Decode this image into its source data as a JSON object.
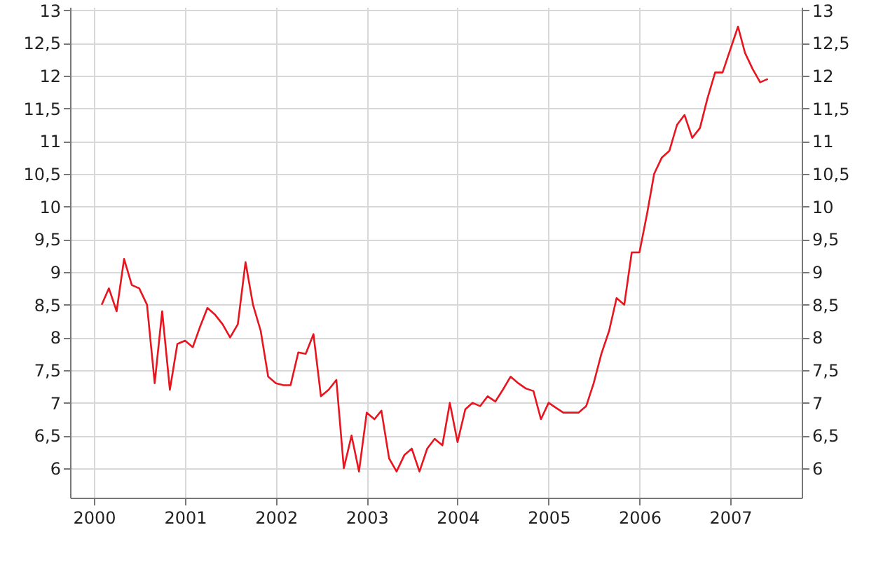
{
  "chart_data": {
    "type": "line",
    "x": [
      "2000-02",
      "2000-03",
      "2000-04",
      "2000-05",
      "2000-06",
      "2000-07",
      "2000-08",
      "2000-09",
      "2000-10",
      "2000-11",
      "2000-12",
      "2001-01",
      "2001-02",
      "2001-03",
      "2001-04",
      "2001-05",
      "2001-06",
      "2001-07",
      "2001-08",
      "2001-09",
      "2001-10",
      "2001-11",
      "2001-12",
      "2002-01",
      "2002-02",
      "2002-03",
      "2002-04",
      "2002-05",
      "2002-06",
      "2002-07",
      "2002-08",
      "2002-09",
      "2002-10",
      "2002-11",
      "2002-12",
      "2003-01",
      "2003-02",
      "2003-03",
      "2003-04",
      "2003-05",
      "2003-06",
      "2003-07",
      "2003-08",
      "2003-09",
      "2003-10",
      "2003-11",
      "2003-12",
      "2004-01",
      "2004-02",
      "2004-03",
      "2004-04",
      "2004-05",
      "2004-06",
      "2004-07",
      "2004-08",
      "2004-09",
      "2004-10",
      "2004-11",
      "2004-12",
      "2005-01",
      "2005-02",
      "2005-03",
      "2005-04",
      "2005-05",
      "2005-06",
      "2005-07",
      "2005-08",
      "2005-09",
      "2005-10",
      "2005-11",
      "2005-12",
      "2006-01",
      "2006-02",
      "2006-03",
      "2006-04",
      "2006-05",
      "2006-06",
      "2006-07",
      "2006-08",
      "2006-09",
      "2006-10",
      "2006-11",
      "2006-12",
      "2007-01",
      "2007-02",
      "2007-03",
      "2007-04",
      "2007-05",
      "2007-06"
    ],
    "series": [
      {
        "color": "#e8141e",
        "values": [
          8.5,
          8.75,
          8.4,
          9.2,
          8.8,
          8.75,
          8.5,
          7.3,
          8.4,
          7.2,
          7.9,
          7.95,
          7.85,
          8.15,
          8.45,
          8.35,
          8.2,
          8.0,
          8.2,
          9.15,
          8.5,
          8.1,
          7.4,
          7.3,
          7.27,
          7.27,
          7.77,
          7.75,
          8.05,
          7.1,
          7.2,
          7.35,
          6.0,
          6.5,
          5.95,
          6.85,
          6.75,
          6.88,
          6.15,
          5.95,
          6.2,
          6.3,
          5.95,
          6.3,
          6.45,
          6.35,
          7.0,
          6.4,
          6.9,
          7.0,
          6.95,
          7.1,
          7.02,
          7.2,
          7.4,
          7.3,
          7.22,
          7.18,
          6.75,
          7.0,
          6.92,
          6.85,
          6.85,
          6.85,
          6.95,
          7.3,
          7.75,
          8.1,
          8.6,
          8.5,
          9.3,
          9.3,
          9.9,
          10.5,
          10.75,
          10.85,
          11.25,
          11.4,
          11.05,
          11.2,
          11.65,
          12.05,
          12.05,
          12.4,
          12.75,
          12.35,
          12.1,
          11.9,
          11.95
        ]
      }
    ],
    "xlim": [
      "1999-09-27",
      "2007-10-15"
    ],
    "xticks": [
      "2000",
      "2001",
      "2002",
      "2003",
      "2004",
      "2005",
      "2006",
      "2007"
    ],
    "ylim": [
      5.55,
      13.05
    ],
    "yticks": [
      6,
      {
        "value": 6.5,
        "label": "6,5"
      },
      7,
      {
        "value": 7.5,
        "label": "7,5"
      },
      8,
      {
        "value": 8.5,
        "label": "8,5"
      },
      9,
      {
        "value": 9.5,
        "label": "9,5"
      },
      10,
      {
        "value": 10.5,
        "label": "10,5"
      },
      11,
      {
        "value": 11.5,
        "label": "11,5"
      },
      12,
      {
        "value": 12.5,
        "label": "12,5"
      },
      13
    ],
    "y2lim": [
      5.55,
      13.05
    ],
    "y2ticks": [
      6,
      {
        "value": 6.5,
        "label": "6,5"
      },
      7,
      {
        "value": 7.5,
        "label": "7,5"
      },
      8,
      {
        "value": 8.5,
        "label": "8,5"
      },
      9,
      {
        "value": 9.5,
        "label": "9,5"
      },
      10,
      {
        "value": 10.5,
        "label": "10,5"
      },
      11,
      {
        "value": 11.5,
        "label": "11,5"
      },
      12,
      {
        "value": 12.5,
        "label": "12,5"
      },
      13
    ],
    "grid": true
  }
}
